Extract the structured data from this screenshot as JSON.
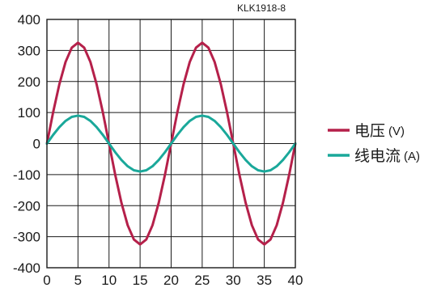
{
  "chart_data": {
    "type": "line",
    "figure_code": "KLK1918-8",
    "xlim": [
      0,
      40
    ],
    "ylim": [
      -400,
      400
    ],
    "x_ticks": [
      0,
      5,
      10,
      15,
      20,
      25,
      30,
      35,
      40
    ],
    "y_ticks": [
      400,
      300,
      200,
      100,
      0,
      -100,
      -200,
      -300,
      -400
    ],
    "grid": true,
    "legend_position": "right",
    "series": [
      {
        "name": "电压",
        "unit": "(V)",
        "color": "#b5204a",
        "x": [
          0,
          1,
          2,
          3,
          4,
          5,
          6,
          7,
          8,
          9,
          10,
          11,
          12,
          13,
          14,
          15,
          16,
          17,
          18,
          19,
          20,
          21,
          22,
          23,
          24,
          25,
          26,
          27,
          28,
          29,
          30,
          31,
          32,
          33,
          34,
          35,
          36,
          37,
          38,
          39,
          40
        ],
        "y": [
          0,
          101,
          191,
          263,
          309,
          325,
          309,
          263,
          191,
          101,
          0,
          -101,
          -191,
          -263,
          -309,
          -325,
          -309,
          -263,
          -191,
          -101,
          0,
          101,
          191,
          263,
          309,
          325,
          309,
          263,
          191,
          101,
          0,
          -101,
          -191,
          -263,
          -309,
          -325,
          -309,
          -263,
          -191,
          -101,
          0
        ]
      },
      {
        "name": "线电流",
        "unit": "(A)",
        "color": "#1aa89a",
        "x": [
          0,
          1,
          2,
          3,
          4,
          5,
          6,
          7,
          8,
          9,
          10,
          11,
          12,
          13,
          14,
          15,
          16,
          17,
          18,
          19,
          20,
          21,
          22,
          23,
          24,
          25,
          26,
          27,
          28,
          29,
          30,
          31,
          32,
          33,
          34,
          35,
          36,
          37,
          38,
          39,
          40
        ],
        "y": [
          0,
          28,
          53,
          73,
          86,
          90,
          86,
          73,
          53,
          28,
          0,
          -28,
          -53,
          -73,
          -86,
          -90,
          -86,
          -73,
          -53,
          -28,
          0,
          28,
          53,
          73,
          86,
          90,
          86,
          73,
          53,
          28,
          0,
          -28,
          -53,
          -73,
          -86,
          -90,
          -86,
          -73,
          -53,
          -28,
          0
        ]
      }
    ]
  }
}
